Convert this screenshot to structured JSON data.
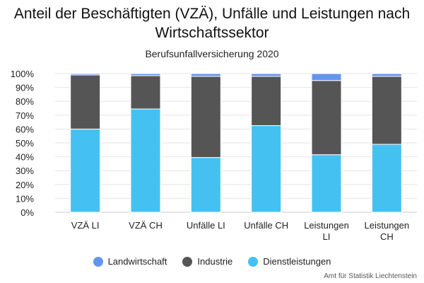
{
  "chart_data": {
    "type": "bar",
    "stacked": true,
    "title": "Anteil der Beschäftigten (VZÄ), Unfälle und Leistungen nach Wirtschaftssektor",
    "subtitle": "Berufsunfallversicherung 2020",
    "credit": "Amt für Statistik Liechtenstein",
    "xlabel": "",
    "ylabel": "",
    "ylim": [
      0,
      100
    ],
    "yticks": [
      "0%",
      "10%",
      "20%",
      "30%",
      "40%",
      "50%",
      "60%",
      "70%",
      "80%",
      "90%",
      "100%"
    ],
    "categories": [
      [
        "VZÄ LI"
      ],
      [
        "VZÄ CH"
      ],
      [
        "Unfälle LI"
      ],
      [
        "Unfälle CH"
      ],
      [
        "Leistungen",
        "LI"
      ],
      [
        "Leistungen",
        "CH"
      ]
    ],
    "series": [
      {
        "name": "Dienstleistungen",
        "color": "#45c1f1",
        "values": [
          60,
          74.5,
          39.5,
          62.5,
          41.5,
          49
        ]
      },
      {
        "name": "Industrie",
        "color": "#555555",
        "values": [
          39,
          24,
          58.5,
          35.5,
          53.5,
          49
        ]
      },
      {
        "name": "Landwirtschaft",
        "color": "#6495ed",
        "values": [
          1,
          1.5,
          2,
          2,
          5,
          2
        ]
      }
    ],
    "legend": {
      "position": "bottom",
      "order": [
        "Landwirtschaft",
        "Industrie",
        "Dienstleistungen"
      ]
    },
    "grid": true
  }
}
